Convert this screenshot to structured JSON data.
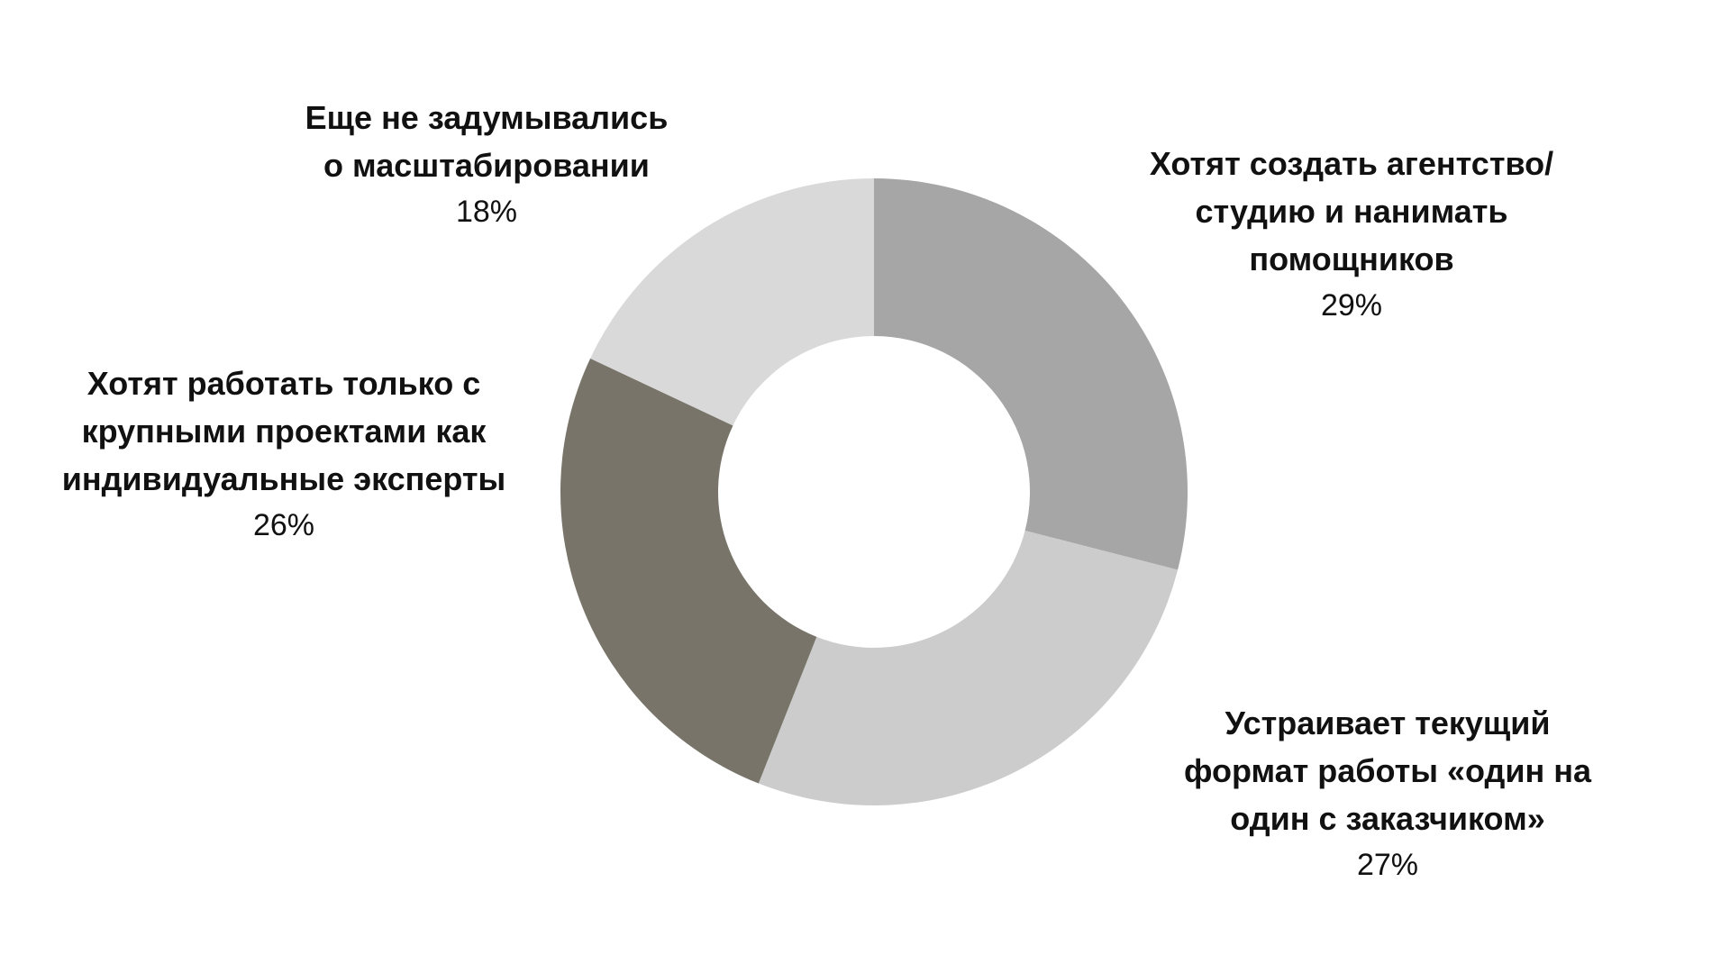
{
  "chart_data": {
    "type": "pie",
    "donut": true,
    "slices": [
      {
        "label": "Хотят создать агентство/\nстудию и нанимать\nпомощников",
        "value": 29,
        "display": "29%",
        "color": "#a6a6a6"
      },
      {
        "label": "Устраивает текущий\nформат работы «один на\nодин с заказчиком»",
        "value": 27,
        "display": "27%",
        "color": "#cbcccb"
      },
      {
        "label": "Хотят работать только с\nкрупными проектами как\nиндивидуальные эксперты",
        "value": 26,
        "display": "26%",
        "color": "#787469"
      },
      {
        "label": "Еще не задумывались\nо масштабировании",
        "value": 18,
        "display": "18%",
        "color": "#d9d9d9"
      }
    ],
    "start": "top",
    "direction": "clockwise",
    "legend": "none"
  }
}
